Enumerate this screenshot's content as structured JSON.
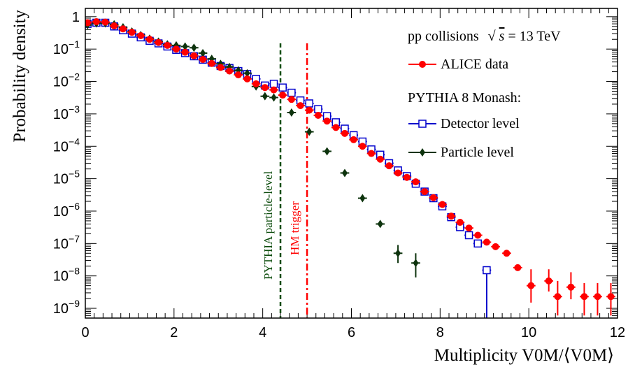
{
  "chart_data": {
    "type": "scatter",
    "xlabel": "Multiplicity V0M/⟨V0M⟩",
    "ylabel": "Probability density",
    "xlim": [
      0,
      12
    ],
    "ylim": [
      5e-10,
      1.8
    ],
    "yscale": "log",
    "xticks": [
      {
        "value": 0,
        "label": "0"
      },
      {
        "value": 2,
        "label": "2"
      },
      {
        "value": 4,
        "label": "4"
      },
      {
        "value": 6,
        "label": "6"
      },
      {
        "value": 8,
        "label": "8"
      },
      {
        "value": 10,
        "label": "10"
      },
      {
        "value": 12,
        "label": "12"
      }
    ],
    "yticks": [
      {
        "value": 1,
        "base": "1",
        "exp": ""
      },
      {
        "value": 0.1,
        "base": "10",
        "exp": "−1"
      },
      {
        "value": 0.01,
        "base": "10",
        "exp": "−2"
      },
      {
        "value": 0.001,
        "base": "10",
        "exp": "−3"
      },
      {
        "value": 0.0001,
        "base": "10",
        "exp": "−4"
      },
      {
        "value": 1e-05,
        "base": "10",
        "exp": "−5"
      },
      {
        "value": 1e-06,
        "base": "10",
        "exp": "−6"
      },
      {
        "value": 1e-07,
        "base": "10",
        "exp": "−7"
      },
      {
        "value": 1e-08,
        "base": "10",
        "exp": "−8"
      },
      {
        "value": 1e-09,
        "base": "10",
        "exp": "−9"
      }
    ],
    "legend": {
      "position": "top-right",
      "header_prefix": "pp collisions",
      "header_sqrt": "√",
      "header_s": "s",
      "header_suffix": " = 13 TeV",
      "subheader": "PYTHIA 8 Monash:"
    },
    "annotations": [
      {
        "text": "PYTHIA particle-level",
        "x": 4.4,
        "color": "#0d4d0d",
        "style": "dashed"
      },
      {
        "text": "HM trigger",
        "x": 5.0,
        "color": "#ff0000",
        "style": "dashdot"
      }
    ],
    "series": [
      {
        "name": "ALICE data",
        "marker": "circle",
        "color": "#ff0000",
        "points": [
          [
            0.05,
            0.65
          ],
          [
            0.25,
            0.7
          ],
          [
            0.45,
            0.68
          ],
          [
            0.65,
            0.52
          ],
          [
            0.85,
            0.42
          ],
          [
            1.05,
            0.33
          ],
          [
            1.25,
            0.26
          ],
          [
            1.45,
            0.2
          ],
          [
            1.65,
            0.16
          ],
          [
            1.85,
            0.13
          ],
          [
            2.05,
            0.1
          ],
          [
            2.25,
            0.08
          ],
          [
            2.45,
            0.062
          ],
          [
            2.65,
            0.048
          ],
          [
            2.85,
            0.036
          ],
          [
            3.05,
            0.027
          ],
          [
            3.25,
            0.021
          ],
          [
            3.45,
            0.016
          ],
          [
            3.65,
            0.012
          ],
          [
            3.85,
            0.0085
          ],
          [
            4.05,
            0.0065
          ],
          [
            4.25,
            0.0055
          ],
          [
            4.45,
            0.0038
          ],
          [
            4.65,
            0.0028
          ],
          [
            4.85,
            0.0018
          ],
          [
            5.05,
            0.0013
          ],
          [
            5.25,
            0.0009
          ],
          [
            5.45,
            0.0006
          ],
          [
            5.65,
            0.00038
          ],
          [
            5.85,
            0.00025
          ],
          [
            6.05,
            0.00016
          ],
          [
            6.25,
            0.0001
          ],
          [
            6.45,
            6e-05
          ],
          [
            6.65,
            4e-05
          ],
          [
            6.85,
            2.5e-05
          ],
          [
            7.05,
            1.5e-05
          ],
          [
            7.25,
            1.1e-05
          ],
          [
            7.45,
            8e-06
          ],
          [
            7.65,
            4e-06
          ],
          [
            7.85,
            2.6e-06
          ],
          [
            8.05,
            1.6e-06
          ],
          [
            8.25,
            7e-07
          ],
          [
            8.45,
            4.5e-07
          ],
          [
            8.65,
            3e-07
          ],
          [
            8.85,
            1.8e-07
          ],
          [
            9.05,
            1.1e-07
          ],
          [
            9.25,
            8e-08
          ],
          [
            9.5,
            5e-08
          ],
          [
            9.75,
            1.8e-08
          ],
          [
            10.05,
            5e-09
          ],
          [
            10.45,
            7e-09
          ],
          [
            10.65,
            2.3e-09
          ],
          [
            10.95,
            4.5e-09
          ],
          [
            11.25,
            2.3e-09
          ],
          [
            11.55,
            2.3e-09
          ],
          [
            11.85,
            2.3e-09
          ]
        ],
        "yerr_high": {
          "10.05": 1.6e-08,
          "10.45": 1.6e-08,
          "10.65": 7e-09,
          "10.95": 1.3e-08,
          "11.25": 6e-09,
          "11.55": 6e-09,
          "11.85": 6e-09
        },
        "yerr_low": {
          "10.05": 1.5e-09,
          "10.45": 3.3e-09,
          "10.65": 6e-10,
          "10.95": 1.9e-09,
          "11.25": 6e-10,
          "11.55": 6e-10,
          "11.85": 6e-10
        }
      },
      {
        "name": "Detector level",
        "marker": "open-square",
        "color": "#0000cc",
        "points": [
          [
            0.05,
            0.6
          ],
          [
            0.25,
            0.65
          ],
          [
            0.45,
            0.65
          ],
          [
            0.65,
            0.5
          ],
          [
            0.85,
            0.38
          ],
          [
            1.05,
            0.3
          ],
          [
            1.25,
            0.23
          ],
          [
            1.45,
            0.18
          ],
          [
            1.65,
            0.15
          ],
          [
            1.85,
            0.12
          ],
          [
            2.05,
            0.095
          ],
          [
            2.25,
            0.075
          ],
          [
            2.45,
            0.06
          ],
          [
            2.65,
            0.047
          ],
          [
            2.85,
            0.038
          ],
          [
            3.05,
            0.03
          ],
          [
            3.25,
            0.026
          ],
          [
            3.45,
            0.021
          ],
          [
            3.65,
            0.017
          ],
          [
            3.85,
            0.012
          ],
          [
            4.05,
            0.0075
          ],
          [
            4.25,
            0.0085
          ],
          [
            4.45,
            0.0065
          ],
          [
            4.65,
            0.0045
          ],
          [
            4.85,
            0.0026
          ],
          [
            5.05,
            0.0021
          ],
          [
            5.25,
            0.0014
          ],
          [
            5.45,
            0.00085
          ],
          [
            5.65,
            0.00055
          ],
          [
            5.85,
            0.00035
          ],
          [
            6.05,
            0.00022
          ],
          [
            6.25,
            0.00014
          ],
          [
            6.45,
            8e-05
          ],
          [
            6.65,
            5.5e-05
          ],
          [
            6.85,
            3e-05
          ],
          [
            7.05,
            1.8e-05
          ],
          [
            7.25,
            1.2e-05
          ],
          [
            7.45,
            7e-06
          ],
          [
            7.65,
            4e-06
          ],
          [
            7.85,
            2.5e-06
          ],
          [
            8.05,
            1.4e-06
          ],
          [
            8.25,
            6.5e-07
          ],
          [
            8.45,
            3.2e-07
          ],
          [
            8.65,
            1.8e-07
          ],
          [
            8.85,
            1e-07
          ],
          [
            9.05,
            1.5e-08
          ]
        ],
        "yerr_low": {
          "9.05": 1e-10
        }
      },
      {
        "name": "Particle level",
        "marker": "diamond",
        "color": "#0d330d",
        "points": [
          [
            0.05,
            0.55
          ],
          [
            0.25,
            0.62
          ],
          [
            0.45,
            0.62
          ],
          [
            0.65,
            0.58
          ],
          [
            0.85,
            0.47
          ],
          [
            1.05,
            0.35
          ],
          [
            1.25,
            0.27
          ],
          [
            1.45,
            0.21
          ],
          [
            1.65,
            0.17
          ],
          [
            1.85,
            0.14
          ],
          [
            2.05,
            0.13
          ],
          [
            2.25,
            0.12
          ],
          [
            2.45,
            0.11
          ],
          [
            2.65,
            0.075
          ],
          [
            2.85,
            0.05
          ],
          [
            3.05,
            0.035
          ],
          [
            3.25,
            0.028
          ],
          [
            3.45,
            0.022
          ],
          [
            3.65,
            0.018
          ],
          [
            3.85,
            0.007
          ],
          [
            4.05,
            0.0035
          ],
          [
            4.25,
            0.0032
          ],
          [
            4.65,
            0.0011
          ],
          [
            5.05,
            0.00028
          ],
          [
            5.45,
            7e-05
          ],
          [
            5.85,
            1.5e-05
          ],
          [
            6.25,
            2.5e-06
          ],
          [
            6.65,
            4e-07
          ],
          [
            7.05,
            5e-08
          ],
          [
            7.45,
            2.5e-08
          ]
        ],
        "yerr_high": {
          "7.05": 9e-08,
          "7.45": 5e-08
        },
        "yerr_low": {
          "7.05": 2.5e-08,
          "7.45": 9e-09
        }
      }
    ]
  }
}
